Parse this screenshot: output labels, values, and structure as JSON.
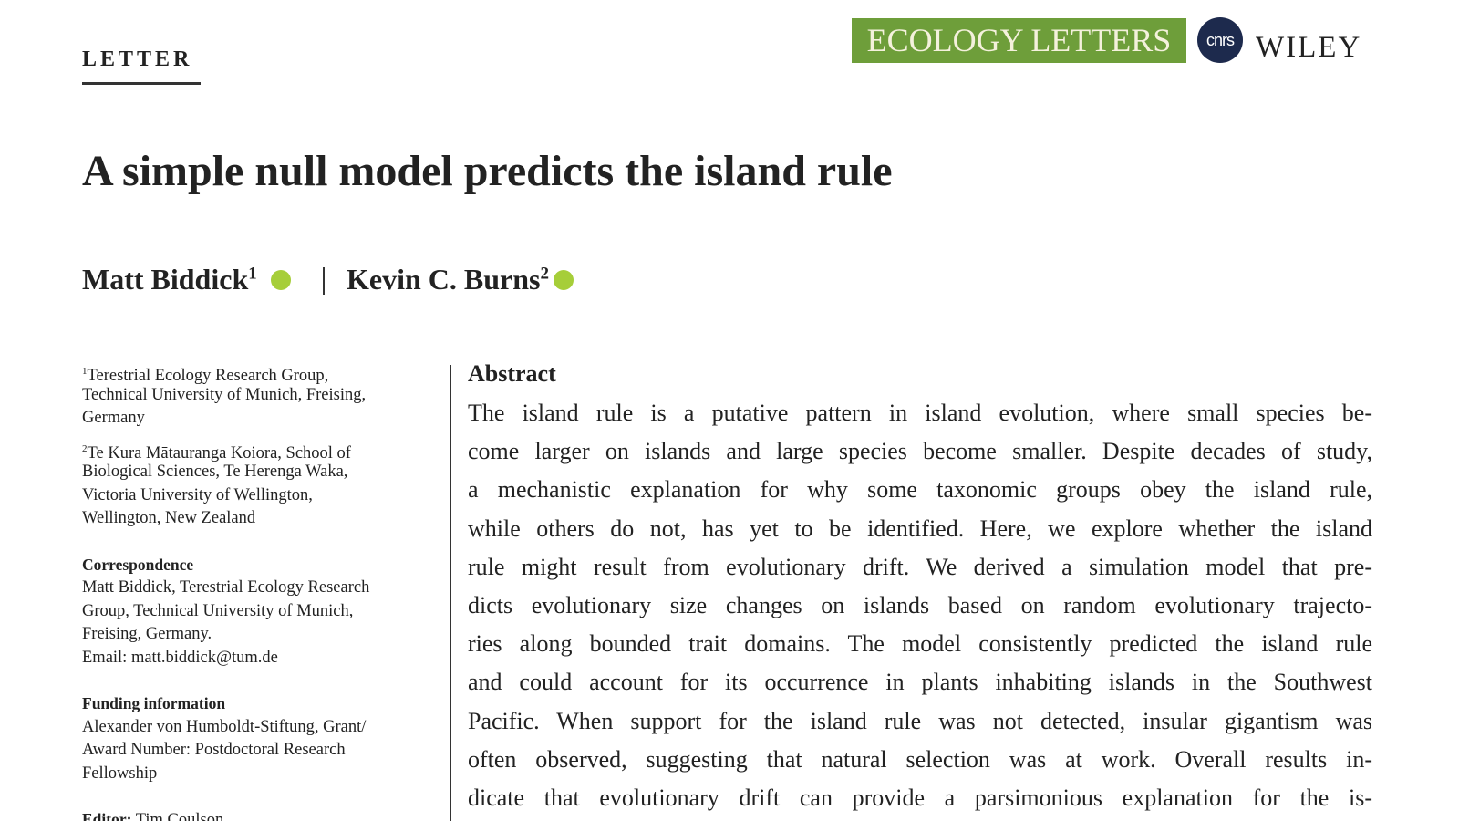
{
  "header": {
    "section": "LETTER",
    "journal": "ECOLOGY LETTERS",
    "partner": "cnrs",
    "publisher": "WILEY"
  },
  "title": "A simple null model predicts the island rule",
  "authors": [
    {
      "name": "Matt Biddick",
      "affiliation": "1"
    },
    {
      "name": "Kevin C. Burns",
      "affiliation": "2"
    }
  ],
  "sidebar": {
    "affiliations": [
      {
        "mark": "1",
        "lines": [
          "Terestrial Ecology Research Group,",
          "Technical University of Munich, Freising,",
          "Germany"
        ]
      },
      {
        "mark": "2",
        "lines": [
          "Te Kura Mātauranga Koiora, School of",
          "Biological Sciences, Te Herenga Waka,",
          "Victoria University of Wellington,",
          "Wellington, New Zealand"
        ]
      }
    ],
    "sections": [
      {
        "heading": "Correspondence",
        "lines": [
          "Matt Biddick, Terestrial Ecology Research",
          "Group, Technical University of Munich,",
          "Freising, Germany.",
          "Email: matt.biddick@tum.de"
        ]
      },
      {
        "heading": "Funding information",
        "lines": [
          "Alexander von Humboldt-Stiftung, Grant/",
          "Award Number: Postdoctoral Research",
          "Fellowship"
        ]
      }
    ],
    "editor": {
      "label": "Editor:",
      "name": "Tim Coulson"
    }
  },
  "abstract": {
    "heading": "Abstract",
    "lines": [
      "The island rule is a putative pattern in island evolution, where small species be-",
      "come larger on islands and large species become smaller. Despite decades of study,",
      "a mechanistic explanation for why some taxonomic groups obey the island rule,",
      "while others do not, has yet to be identified. Here, we explore whether the island",
      "rule might result from evolutionary drift. We derived a simulation model that pre-",
      "dicts evolutionary size changes on islands based on random evolutionary trajecto-",
      "ries along bounded trait domains. The model consistently predicted the island rule",
      "and could account for its occurrence in plants inhabiting islands in the Southwest",
      "Pacific. When support for the island rule was not detected, insular gigantism was",
      "often observed, suggesting that natural selection was at work. Overall results in-",
      "dicate that evolutionary drift can provide a parsimonious explanation for the is-"
    ]
  }
}
